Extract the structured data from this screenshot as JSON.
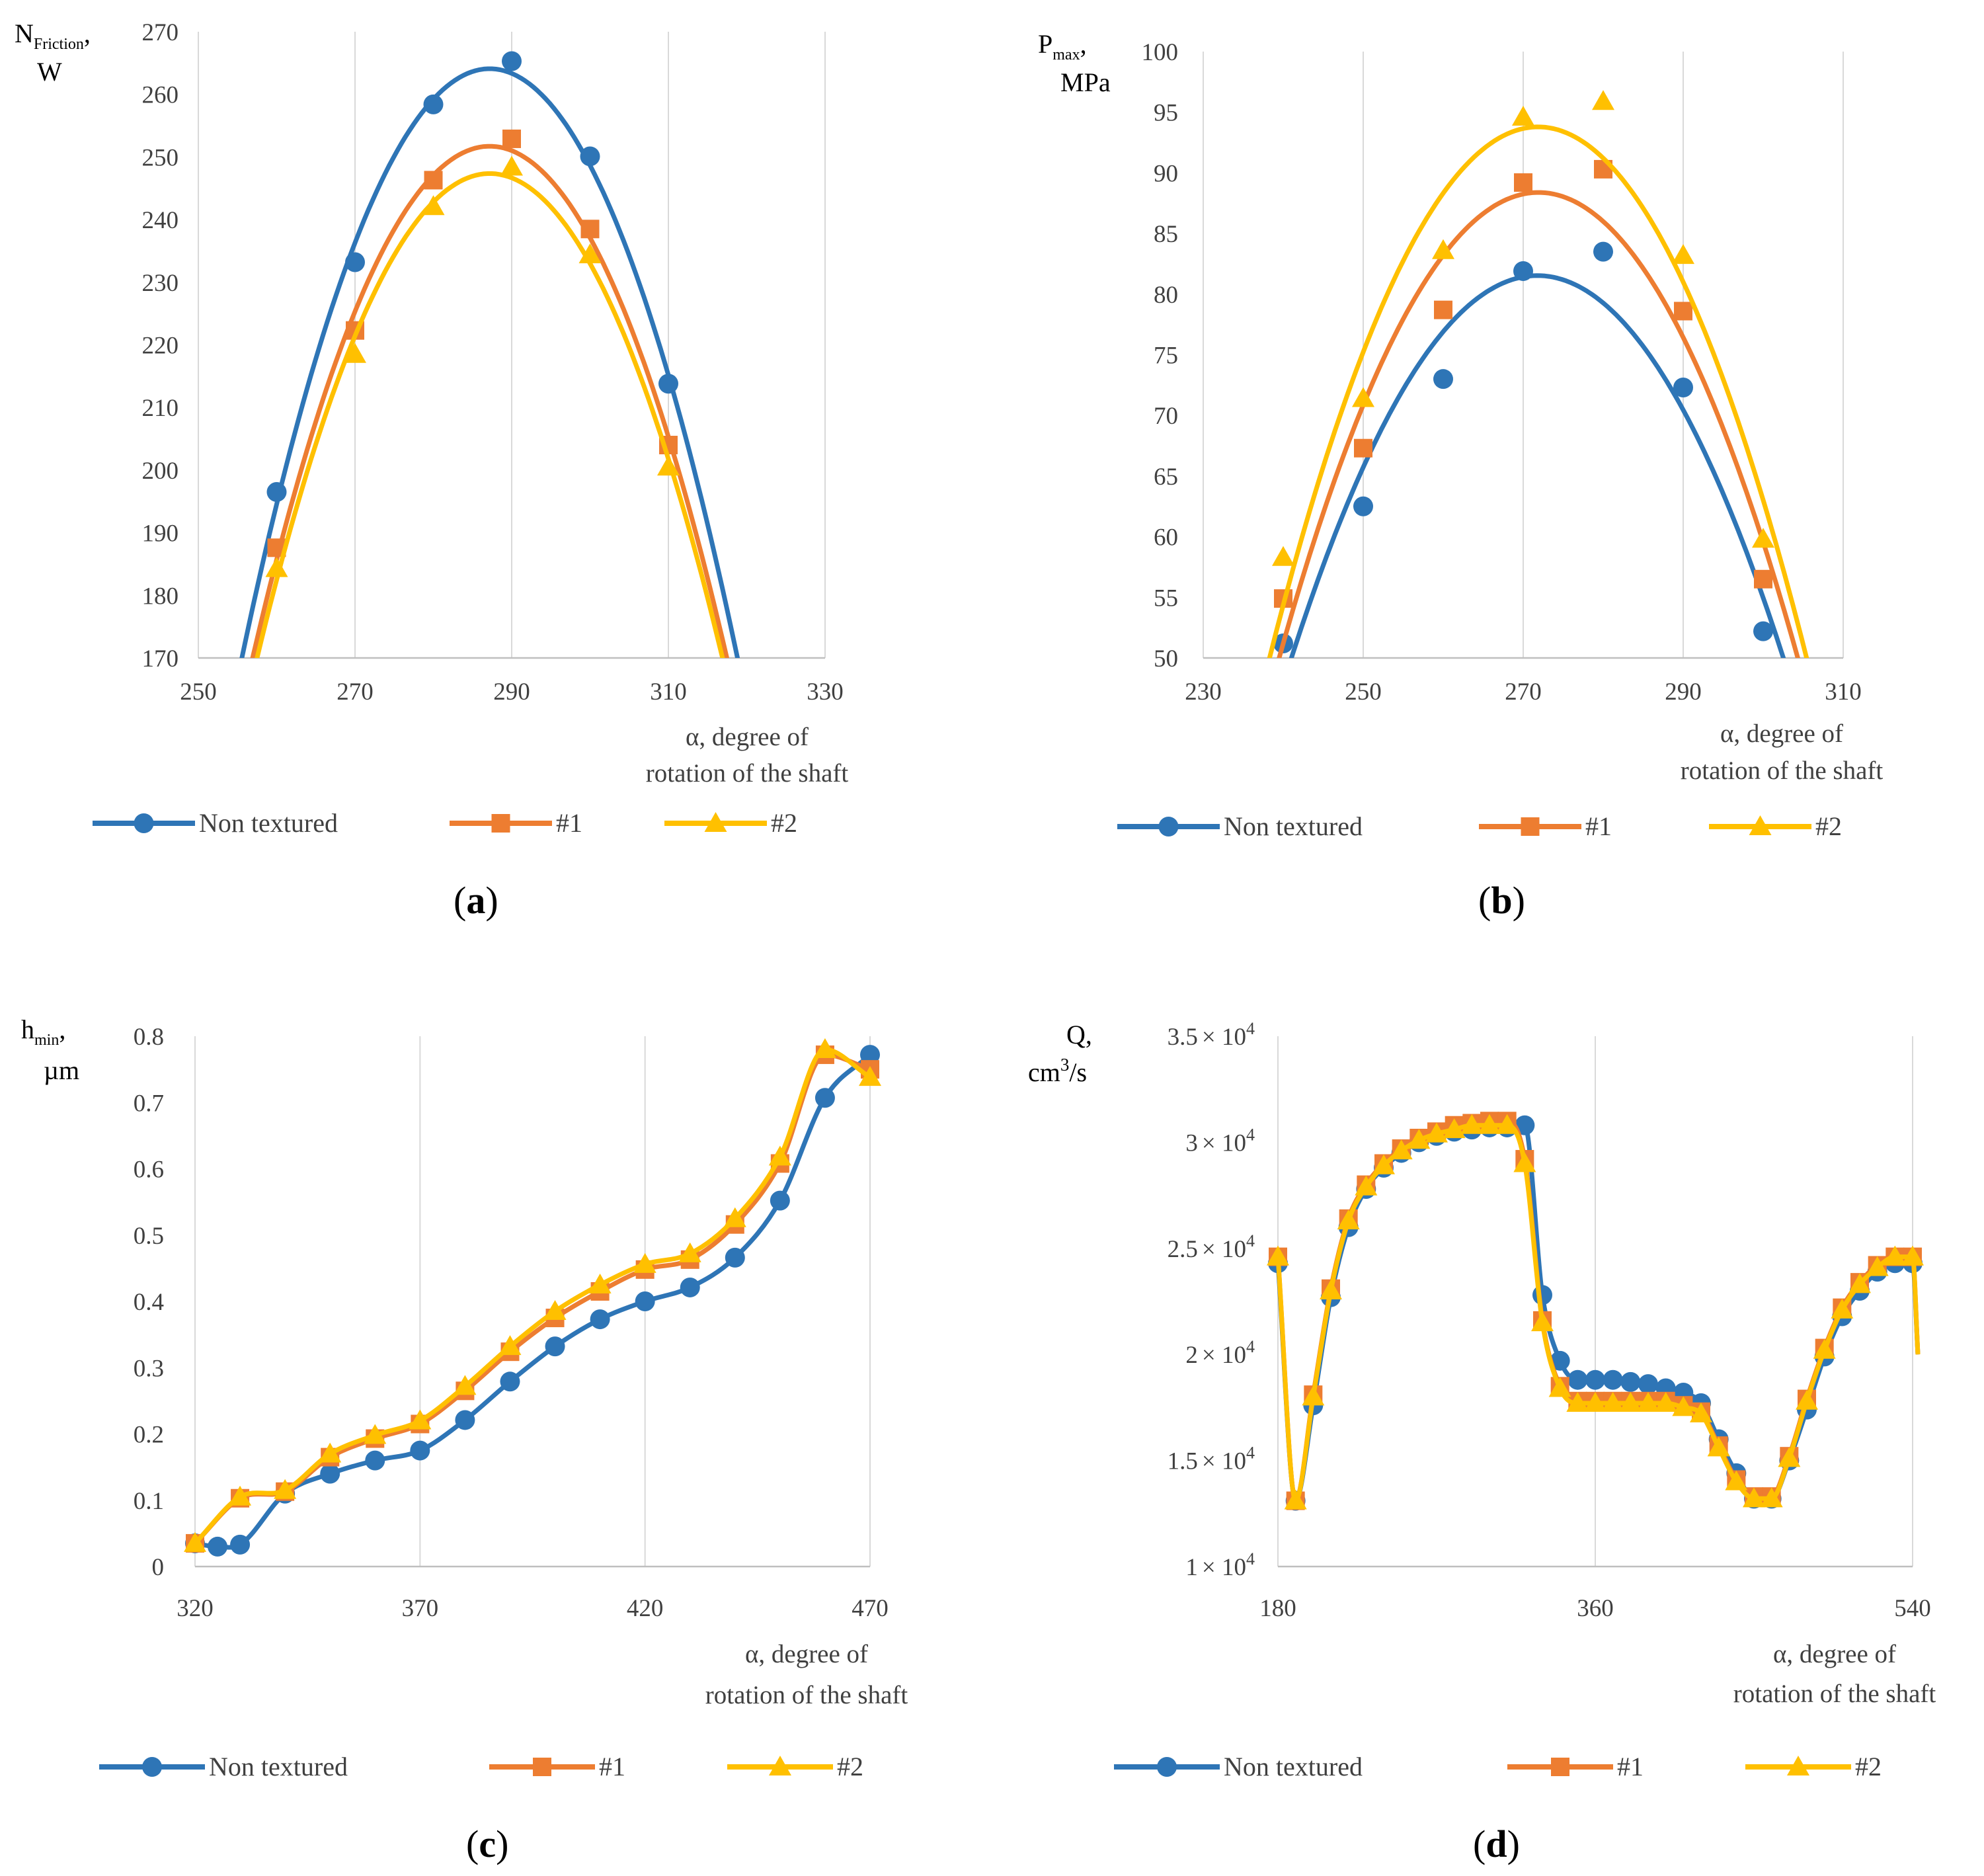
{
  "colors": {
    "Non textured": "#2E75B6",
    "#1": "#ED7D31",
    "#2": "#FFC000",
    "grid": "#D9D9D9",
    "axis": "#BFBFBF"
  },
  "legend": [
    "Non textured",
    "#1",
    "#2"
  ],
  "chart_data": [
    {
      "id": "a",
      "type": "line",
      "smooth": true,
      "caption": {
        "open": "(",
        "letter": "a",
        "close": ")"
      },
      "ylabel": [
        "N",
        "Friction",
        ",",
        "W"
      ],
      "xlabel": [
        "α, degree of",
        "rotation of the shaft"
      ],
      "xlim": [
        250,
        330
      ],
      "xticks": [
        250,
        270,
        290,
        310,
        330
      ],
      "ylim": [
        170,
        270
      ],
      "yticks": [
        170,
        180,
        190,
        200,
        210,
        220,
        230,
        240,
        250,
        260,
        270
      ],
      "grid": "vertical",
      "legend_position": "bottom",
      "series": [
        {
          "name": "Non textured",
          "marker": "circle",
          "x": [
            260,
            270,
            280,
            290,
            300,
            310
          ],
          "y": [
            196.5,
            233.2,
            258.4,
            265.3,
            250.1,
            213.8
          ]
        },
        {
          "name": "#1",
          "marker": "square",
          "x": [
            260,
            270,
            280,
            290,
            300,
            310
          ],
          "y": [
            187.6,
            222.3,
            246.3,
            252.9,
            238.5,
            204.0
          ]
        },
        {
          "name": "#2",
          "marker": "triangle",
          "x": [
            260,
            270,
            280,
            290,
            300,
            310
          ],
          "y": [
            184.3,
            218.5,
            242.1,
            248.4,
            234.4,
            200.5
          ]
        }
      ]
    },
    {
      "id": "b",
      "type": "line",
      "smooth": true,
      "caption": {
        "open": "(",
        "letter": "b",
        "close": ")"
      },
      "ylabel": [
        "P",
        "max",
        ",",
        "MPa"
      ],
      "xlabel": [
        "α, degree of",
        "rotation of the shaft"
      ],
      "xlim": [
        230,
        310
      ],
      "xticks": [
        230,
        250,
        270,
        290,
        310
      ],
      "ylim": [
        50,
        100
      ],
      "yticks": [
        50,
        55,
        60,
        65,
        70,
        75,
        80,
        85,
        90,
        95,
        100
      ],
      "grid": "vertical",
      "legend_position": "bottom",
      "series": [
        {
          "name": "Non textured",
          "marker": "circle",
          "x": [
            240,
            250,
            260,
            270,
            280,
            290,
            300
          ],
          "y": [
            51.2,
            62.5,
            73.0,
            81.9,
            83.5,
            72.3,
            52.2
          ]
        },
        {
          "name": "#1",
          "marker": "square",
          "x": [
            240,
            250,
            260,
            270,
            280,
            290,
            300
          ],
          "y": [
            54.9,
            67.3,
            78.7,
            89.2,
            90.3,
            78.6,
            56.5
          ]
        },
        {
          "name": "#2",
          "marker": "triangle",
          "x": [
            240,
            250,
            260,
            270,
            280,
            290,
            300
          ],
          "y": [
            58.3,
            71.4,
            83.6,
            94.6,
            95.9,
            83.2,
            59.8
          ]
        }
      ]
    },
    {
      "id": "c",
      "type": "line",
      "smooth": false,
      "caption": {
        "open": "(",
        "letter": "c",
        "close": ")"
      },
      "ylabel": [
        "h",
        "min",
        ",",
        "µm"
      ],
      "xlabel": [
        "α, degree of",
        "rotation of the shaft"
      ],
      "xlim": [
        320,
        470
      ],
      "xticks": [
        320,
        370,
        420,
        470
      ],
      "ylim": [
        0,
        0.8
      ],
      "yticks": [
        0,
        0.1,
        0.2,
        0.3,
        0.4,
        0.5,
        0.6,
        0.7,
        0.8
      ],
      "grid": "vertical",
      "legend_position": "bottom",
      "series": [
        {
          "name": "Non textured",
          "marker": "circle",
          "x": [
            320,
            325,
            330,
            340,
            350,
            360,
            370,
            380,
            390,
            400,
            410,
            420,
            430,
            440,
            450,
            460,
            470
          ],
          "y": [
            0.035,
            0.03,
            0.033,
            0.11,
            0.14,
            0.16,
            0.175,
            0.221,
            0.279,
            0.332,
            0.373,
            0.4,
            0.421,
            0.466,
            0.552,
            0.707,
            0.772
          ]
        },
        {
          "name": "#1",
          "marker": "square",
          "x": [
            320,
            330,
            340,
            350,
            360,
            370,
            380,
            390,
            400,
            410,
            420,
            430,
            440,
            450,
            460,
            470
          ],
          "y": [
            0.035,
            0.103,
            0.113,
            0.165,
            0.193,
            0.215,
            0.265,
            0.324,
            0.375,
            0.415,
            0.448,
            0.463,
            0.516,
            0.608,
            0.772,
            0.75
          ]
        },
        {
          "name": "#2",
          "marker": "triangle",
          "x": [
            320,
            330,
            340,
            350,
            360,
            370,
            380,
            390,
            400,
            410,
            420,
            430,
            440,
            450,
            460,
            470
          ],
          "y": [
            0.035,
            0.105,
            0.115,
            0.17,
            0.198,
            0.22,
            0.272,
            0.332,
            0.385,
            0.425,
            0.456,
            0.472,
            0.525,
            0.618,
            0.78,
            0.738
          ]
        }
      ]
    },
    {
      "id": "d",
      "type": "line",
      "smooth": false,
      "caption": {
        "open": "(",
        "letter": "d",
        "close": ")"
      },
      "ylabel": [
        "Q,",
        "cm",
        "3",
        "/s"
      ],
      "xlabel": [
        "α, degree  of",
        "rotation of the shaft"
      ],
      "xlim": [
        180,
        540
      ],
      "xticks": [
        180,
        360,
        540
      ],
      "ylim": [
        10000,
        35000
      ],
      "yticks": [
        10000,
        15000,
        20000,
        25000,
        30000,
        35000
      ],
      "ytick_labels": [
        [
          "1",
          "4"
        ],
        [
          "1.5",
          "4"
        ],
        [
          "2",
          "4"
        ],
        [
          "2.5",
          "4"
        ],
        [
          "3",
          "4"
        ],
        [
          "3.5",
          "4"
        ]
      ],
      "ytick_times": "× 10",
      "grid": "vertical",
      "legend_position": "bottom",
      "series": [
        {
          "name": "Non textured",
          "marker": "circle",
          "x": [
            180,
            190,
            200,
            210,
            220,
            230,
            240,
            250,
            260,
            270,
            280,
            290,
            300,
            310,
            320,
            330,
            340,
            350,
            360,
            370,
            380,
            390,
            400,
            410,
            420,
            430,
            440,
            450,
            460,
            470,
            480,
            490,
            500,
            510,
            520,
            530,
            540,
            543
          ],
          "y": [
            24300,
            13100,
            17600,
            22700,
            26000,
            27800,
            28800,
            29500,
            30000,
            30300,
            30500,
            30600,
            30700,
            30700,
            30800,
            22800,
            19700,
            18800,
            18800,
            18800,
            18700,
            18600,
            18400,
            18200,
            17700,
            16000,
            14400,
            13200,
            13200,
            15000,
            17400,
            19900,
            21800,
            23000,
            23900,
            24300,
            24300,
            20000
          ]
        },
        {
          "name": "#1",
          "marker": "square",
          "x": [
            180,
            190,
            200,
            210,
            220,
            230,
            240,
            250,
            260,
            270,
            280,
            290,
            300,
            310,
            320,
            330,
            340,
            350,
            360,
            370,
            380,
            390,
            400,
            410,
            420,
            430,
            440,
            450,
            460,
            470,
            480,
            490,
            500,
            510,
            520,
            530,
            540,
            543
          ],
          "y": [
            24600,
            13100,
            18100,
            23100,
            26400,
            28000,
            29000,
            29700,
            30200,
            30500,
            30800,
            30900,
            31000,
            31000,
            29200,
            21600,
            18500,
            17800,
            17800,
            17800,
            17800,
            17800,
            17800,
            17600,
            17300,
            15700,
            14100,
            13300,
            13300,
            15200,
            17900,
            20300,
            22200,
            23400,
            24200,
            24600,
            24600,
            20000
          ]
        },
        {
          "name": "#2",
          "marker": "triangle",
          "x": [
            180,
            190,
            200,
            210,
            220,
            230,
            240,
            250,
            260,
            270,
            280,
            290,
            300,
            310,
            320,
            330,
            340,
            350,
            360,
            370,
            380,
            390,
            400,
            410,
            420,
            430,
            440,
            450,
            460,
            470,
            480,
            490,
            500,
            510,
            520,
            530,
            540,
            543
          ],
          "y": [
            24600,
            13100,
            18000,
            23000,
            26300,
            27900,
            28900,
            29600,
            30100,
            30400,
            30600,
            30800,
            30800,
            30800,
            29000,
            21500,
            18400,
            17700,
            17700,
            17700,
            17700,
            17700,
            17700,
            17500,
            17200,
            15600,
            14000,
            13200,
            13200,
            15100,
            17800,
            20200,
            22100,
            23300,
            24100,
            24600,
            24600,
            20000
          ]
        }
      ]
    }
  ]
}
